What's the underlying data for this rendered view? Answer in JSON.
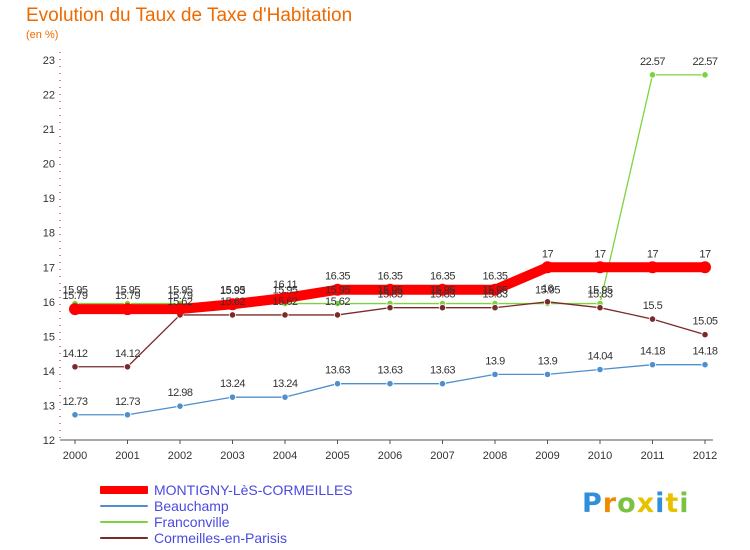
{
  "chart_data": {
    "type": "line",
    "title": "Evolution du Taux de Taxe d'Habitation",
    "subtitle": "(en %)",
    "x": [
      "2000",
      "2001",
      "2002",
      "2003",
      "2004",
      "2005",
      "2006",
      "2007",
      "2008",
      "2009",
      "2010",
      "2011",
      "2012"
    ],
    "y_ticks": [
      "12",
      "13",
      "14",
      "15",
      "16",
      "17",
      "18",
      "19",
      "20",
      "21",
      "22",
      "23"
    ],
    "ylim": [
      12,
      23
    ],
    "grid": false,
    "legend_position": "bottom-left",
    "series": [
      {
        "name": "MONTIGNY-LèS-CORMEILLES",
        "color": "#ff0000",
        "values": [
          15.79,
          15.79,
          15.79,
          15.93,
          16.11,
          16.35,
          16.35,
          16.35,
          16.35,
          17,
          17,
          17,
          17
        ],
        "labels": [
          "15.79",
          "15.79",
          "15.79",
          "15.93",
          "16.11",
          "16.35",
          "16.35",
          "16.35",
          "16.35",
          "17",
          "17",
          "17",
          "17"
        ]
      },
      {
        "name": "Beauchamp",
        "color": "#4f8fcd",
        "values": [
          12.73,
          12.73,
          12.98,
          13.24,
          13.24,
          13.63,
          13.63,
          13.63,
          13.9,
          13.9,
          14.04,
          14.18,
          14.18
        ],
        "labels": [
          "12.73",
          "12.73",
          "12.98",
          "13.24",
          "13.24",
          "13.63",
          "13.63",
          "13.63",
          "13.9",
          "13.9",
          "14.04",
          "14.18",
          "14.18"
        ]
      },
      {
        "name": "Franconville",
        "color": "#7cd33f",
        "values": [
          15.95,
          15.95,
          15.95,
          15.95,
          15.95,
          15.95,
          15.95,
          15.95,
          15.95,
          15.95,
          15.95,
          22.57,
          22.57
        ],
        "labels": [
          "15.95",
          "15.95",
          "15.95",
          "15.95",
          "15.95",
          "15.95",
          "15.95",
          "15.95",
          "15.95",
          "15.95",
          "15.95",
          "22.57",
          "22.57"
        ]
      },
      {
        "name": "Cormeilles-en-Parisis",
        "color": "#7a2a2a",
        "values": [
          14.12,
          14.12,
          15.62,
          15.62,
          15.62,
          15.62,
          15.83,
          15.83,
          15.83,
          16,
          15.83,
          15.5,
          15.05
        ],
        "labels": [
          "14.12",
          "14.12",
          "15.62",
          "15.62",
          "15.62",
          "15.62",
          "15.83",
          "15.83",
          "15.83",
          "16",
          "15.83",
          "15.5",
          "15.05"
        ]
      }
    ]
  },
  "logo": {
    "letters": [
      {
        "ch": "P",
        "color": "#2f8fd8"
      },
      {
        "ch": "r",
        "color": "#f08a00"
      },
      {
        "ch": "o",
        "color": "#7cc242"
      },
      {
        "ch": "x",
        "color": "#e8c200"
      },
      {
        "ch": "i",
        "color": "#2f8fd8"
      },
      {
        "ch": "t",
        "color": "#e8c200"
      },
      {
        "ch": "i",
        "color": "#7cc242"
      }
    ]
  }
}
